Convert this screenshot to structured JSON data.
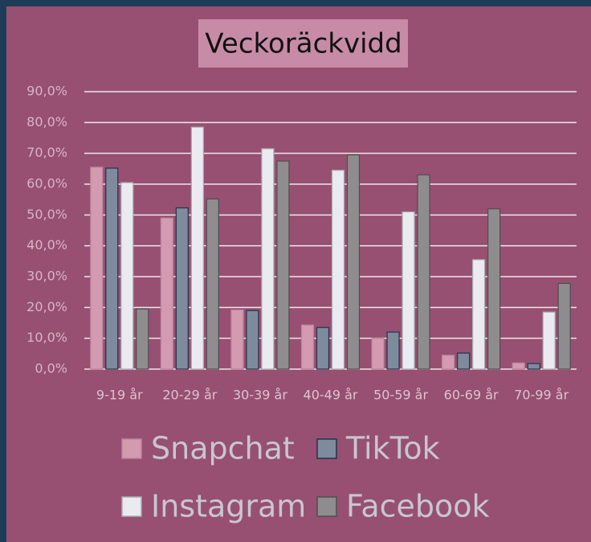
{
  "chart_data": {
    "type": "bar",
    "title": "Veckoräckvidd",
    "categories": [
      "9-19 år",
      "20-29 år",
      "30-39 år",
      "40-49 år",
      "50-59 år",
      "60-69 år",
      "70-99 år"
    ],
    "series": [
      {
        "name": "Snapchat",
        "color": "#d39ab2",
        "values": [
          65.5,
          49,
          19.2,
          14.3,
          10,
          4.5,
          2
        ]
      },
      {
        "name": "TikTok",
        "color": "#7d8b9d",
        "values": [
          65.2,
          52.3,
          19,
          13.5,
          12,
          5.2,
          1.8
        ]
      },
      {
        "name": "Instagram",
        "color": "#e9ebf1",
        "values": [
          60.5,
          78.5,
          71.5,
          64.5,
          51,
          35.5,
          18.5
        ]
      },
      {
        "name": "Facebook",
        "color": "#8e8c8e",
        "values": [
          19.5,
          55.2,
          67.5,
          69.5,
          63,
          52,
          27.8
        ]
      }
    ],
    "ylim": [
      0,
      90
    ],
    "yticks": [
      {
        "value": 0,
        "label": "0,0%"
      },
      {
        "value": 10,
        "label": "10,0%"
      },
      {
        "value": 20,
        "label": "20,0%"
      },
      {
        "value": 30,
        "label": "30,0%"
      },
      {
        "value": 40,
        "label": "40,0%"
      },
      {
        "value": 50,
        "label": "50,0%"
      },
      {
        "value": 60,
        "label": "60,0%"
      },
      {
        "value": 70,
        "label": "70,0%"
      },
      {
        "value": 80,
        "label": "80,0%"
      },
      {
        "value": 90,
        "label": "90,0%"
      }
    ],
    "grid": true
  }
}
